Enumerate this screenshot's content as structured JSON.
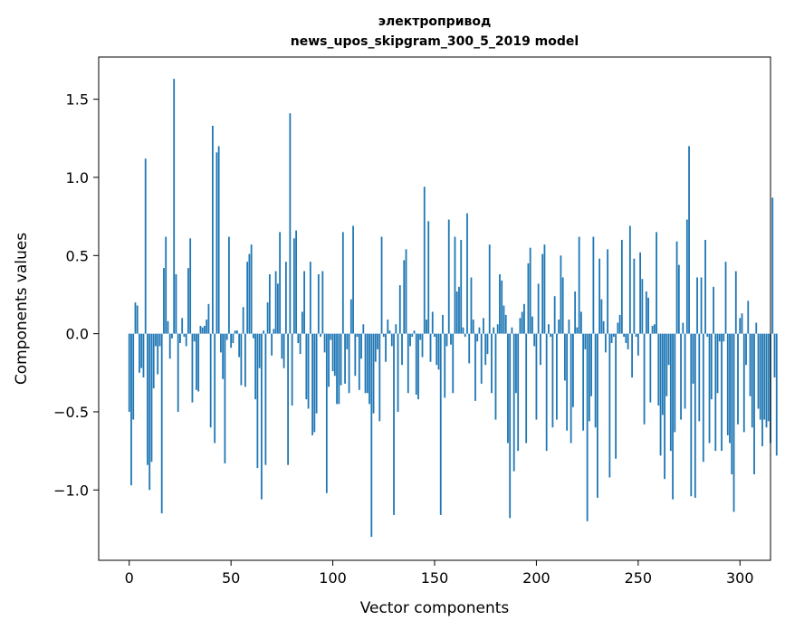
{
  "chart_data": {
    "type": "bar",
    "title": "электропривод",
    "subtitle": "news_upos_skipgram_300_5_2019 model",
    "xlabel": "Vector components",
    "ylabel": "Components values",
    "xlim": [
      -15,
      315
    ],
    "ylim": [
      -1.45,
      1.77
    ],
    "xticks": [
      0,
      50,
      100,
      150,
      200,
      250,
      300
    ],
    "yticks": [
      -1.0,
      -0.5,
      0.0,
      0.5,
      1.0,
      1.5
    ],
    "ytick_labels": [
      "−1.0",
      "−0.5",
      "0.0",
      "0.5",
      "1.0",
      "1.5"
    ],
    "grid": false,
    "bar_color": "#1f77b4",
    "values": [
      -0.5,
      -0.97,
      -0.55,
      0.2,
      0.18,
      -0.25,
      -0.22,
      -0.28,
      1.12,
      -0.84,
      -1.0,
      -0.82,
      -0.35,
      -0.08,
      -0.26,
      -0.08,
      -1.15,
      0.42,
      0.62,
      0.08,
      -0.16,
      -0.03,
      1.63,
      0.38,
      -0.5,
      -0.06,
      0.1,
      -0.02,
      -0.08,
      0.42,
      0.61,
      -0.44,
      -0.05,
      -0.36,
      -0.37,
      0.05,
      0.04,
      0.05,
      0.09,
      0.19,
      -0.6,
      1.33,
      -0.7,
      1.16,
      1.2,
      -0.12,
      -0.29,
      -0.83,
      -0.04,
      0.62,
      -0.09,
      -0.06,
      0.02,
      0.02,
      -0.15,
      -0.33,
      0.17,
      -0.34,
      0.46,
      0.51,
      0.57,
      -0.03,
      -0.42,
      -0.86,
      -0.22,
      -1.06,
      0.02,
      -0.84,
      0.2,
      0.38,
      -0.14,
      0.03,
      0.4,
      0.32,
      0.65,
      -0.16,
      -0.22,
      0.46,
      -0.84,
      1.41,
      -0.46,
      0.61,
      0.66,
      -0.06,
      -0.13,
      0.14,
      0.4,
      -0.42,
      -0.48,
      0.46,
      -0.65,
      -0.63,
      -0.51,
      0.38,
      -0.02,
      0.4,
      -0.12,
      -1.02,
      -0.34,
      -0.04,
      -0.24,
      -0.27,
      -0.45,
      -0.45,
      -0.33,
      0.65,
      -0.32,
      -0.1,
      -0.38,
      0.22,
      0.69,
      -0.27,
      -0.02,
      -0.36,
      -0.16,
      0.06,
      -0.38,
      -0.38,
      -0.45,
      -1.3,
      -0.51,
      -0.18,
      -0.1,
      -0.56,
      0.62,
      -0.02,
      -0.18,
      0.09,
      0.02,
      -0.08,
      -1.16,
      0.06,
      -0.5,
      0.31,
      -0.2,
      0.47,
      0.54,
      -0.38,
      -0.08,
      -0.02,
      0.02,
      -0.39,
      -0.42,
      -0.04,
      -0.15,
      0.94,
      0.09,
      0.72,
      -0.18,
      0.14,
      -0.02,
      -0.2,
      -0.23,
      -1.16,
      0.12,
      -0.41,
      -0.08,
      0.73,
      -0.07,
      -0.38,
      0.62,
      0.27,
      0.3,
      0.6,
      0.04,
      -0.02,
      0.77,
      -0.19,
      0.36,
      0.09,
      -0.43,
      -0.05,
      0.04,
      -0.32,
      0.1,
      -0.2,
      -0.13,
      0.57,
      -0.38,
      0.04,
      -0.55,
      0.06,
      0.38,
      0.34,
      0.18,
      0.12,
      -0.7,
      -1.18,
      0.04,
      -0.88,
      -0.38,
      -0.75,
      0.1,
      0.14,
      0.19,
      -0.7,
      0.45,
      0.55,
      0.11,
      -0.08,
      -0.55,
      0.32,
      -0.2,
      0.51,
      0.57,
      -0.75,
      0.06,
      -0.02,
      -0.6,
      0.24,
      -0.55,
      0.09,
      0.5,
      0.36,
      -0.3,
      -0.62,
      0.09,
      -0.7,
      -0.47,
      0.27,
      0.04,
      0.62,
      0.14,
      -0.62,
      -0.1,
      -1.2,
      -0.56,
      -0.4,
      0.62,
      -0.6,
      -1.05,
      0.48,
      0.22,
      0.08,
      -0.12,
      0.54,
      -0.92,
      -0.06,
      -0.02,
      -0.8,
      0.07,
      0.12,
      0.6,
      -0.02,
      -0.06,
      -0.1,
      0.69,
      -0.28,
      0.48,
      -0.02,
      -0.14,
      0.52,
      0.35,
      -0.58,
      0.27,
      0.23,
      -0.44,
      0.05,
      0.06,
      0.65,
      -0.46,
      -0.78,
      -0.52,
      -0.93,
      -0.4,
      -0.2,
      -0.75,
      -1.06,
      -0.63,
      0.59,
      0.44,
      -0.55,
      0.07,
      -0.48,
      0.73,
      1.2,
      -1.04,
      -0.32,
      -1.05,
      0.36,
      -0.56,
      0.36,
      -0.82,
      0.6,
      -0.02,
      -0.7,
      -0.42,
      0.3,
      -0.75,
      -0.38,
      -0.05,
      -0.75,
      -0.05,
      0.46,
      -0.65,
      -0.7,
      -0.9,
      -1.14,
      0.4,
      -0.58,
      0.1,
      0.13,
      -0.63,
      -0.2,
      0.21,
      -0.4,
      -0.6,
      -0.9,
      0.07,
      -0.48,
      -0.55,
      -0.72,
      -0.55,
      -0.6,
      -0.56,
      -0.7,
      0.87,
      -0.28,
      -0.78
    ]
  }
}
